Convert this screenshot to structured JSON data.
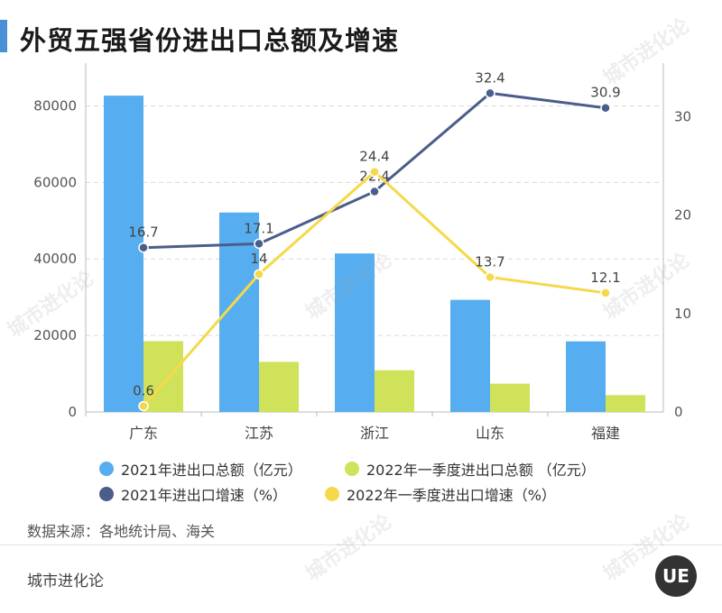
{
  "header": {
    "title": "外贸五强省份进出口总额及增速"
  },
  "chart_data": {
    "type": "bar",
    "categories": [
      "广东",
      "江苏",
      "浙江",
      "山东",
      "福建"
    ],
    "series": [
      {
        "name": "2021年进出口总额（亿元）",
        "kind": "bar",
        "axis": "left",
        "color": "#56aef0",
        "values": [
          82680,
          52131,
          41429,
          29304,
          18450
        ]
      },
      {
        "name": "2022年一季度进出口总额 （亿元）",
        "kind": "bar",
        "axis": "left",
        "color": "#cfe25a",
        "values": [
          18500,
          13100,
          10900,
          7400,
          4400
        ]
      },
      {
        "name": "2021年进出口增速（%）",
        "kind": "line",
        "axis": "right",
        "color": "#4b5d8a",
        "values": [
          16.7,
          17.1,
          22.4,
          32.4,
          30.9
        ],
        "labels": [
          "16.7",
          "17.1",
          "22.4",
          "32.4",
          "30.9"
        ]
      },
      {
        "name": "2022年一季度进出口增速（%）",
        "kind": "line",
        "axis": "right",
        "color": "#f5d94a",
        "values": [
          0.6,
          14,
          24.4,
          13.7,
          12.1
        ],
        "labels": [
          "0.6",
          "14",
          "24.4",
          "13.7",
          "12.1"
        ]
      }
    ],
    "y_left": {
      "ticks": [
        "0",
        "20000",
        "40000",
        "60000",
        "80000"
      ],
      "range": [
        0,
        90000
      ]
    },
    "y_right": {
      "ticks": [
        "0",
        "10",
        "20",
        "30"
      ],
      "range": [
        0,
        35
      ]
    },
    "grid": true,
    "legend_position": "bottom"
  },
  "source_text": "数据来源：各地统计局、海关",
  "brand": "城市进化论",
  "logo_text": "UE"
}
